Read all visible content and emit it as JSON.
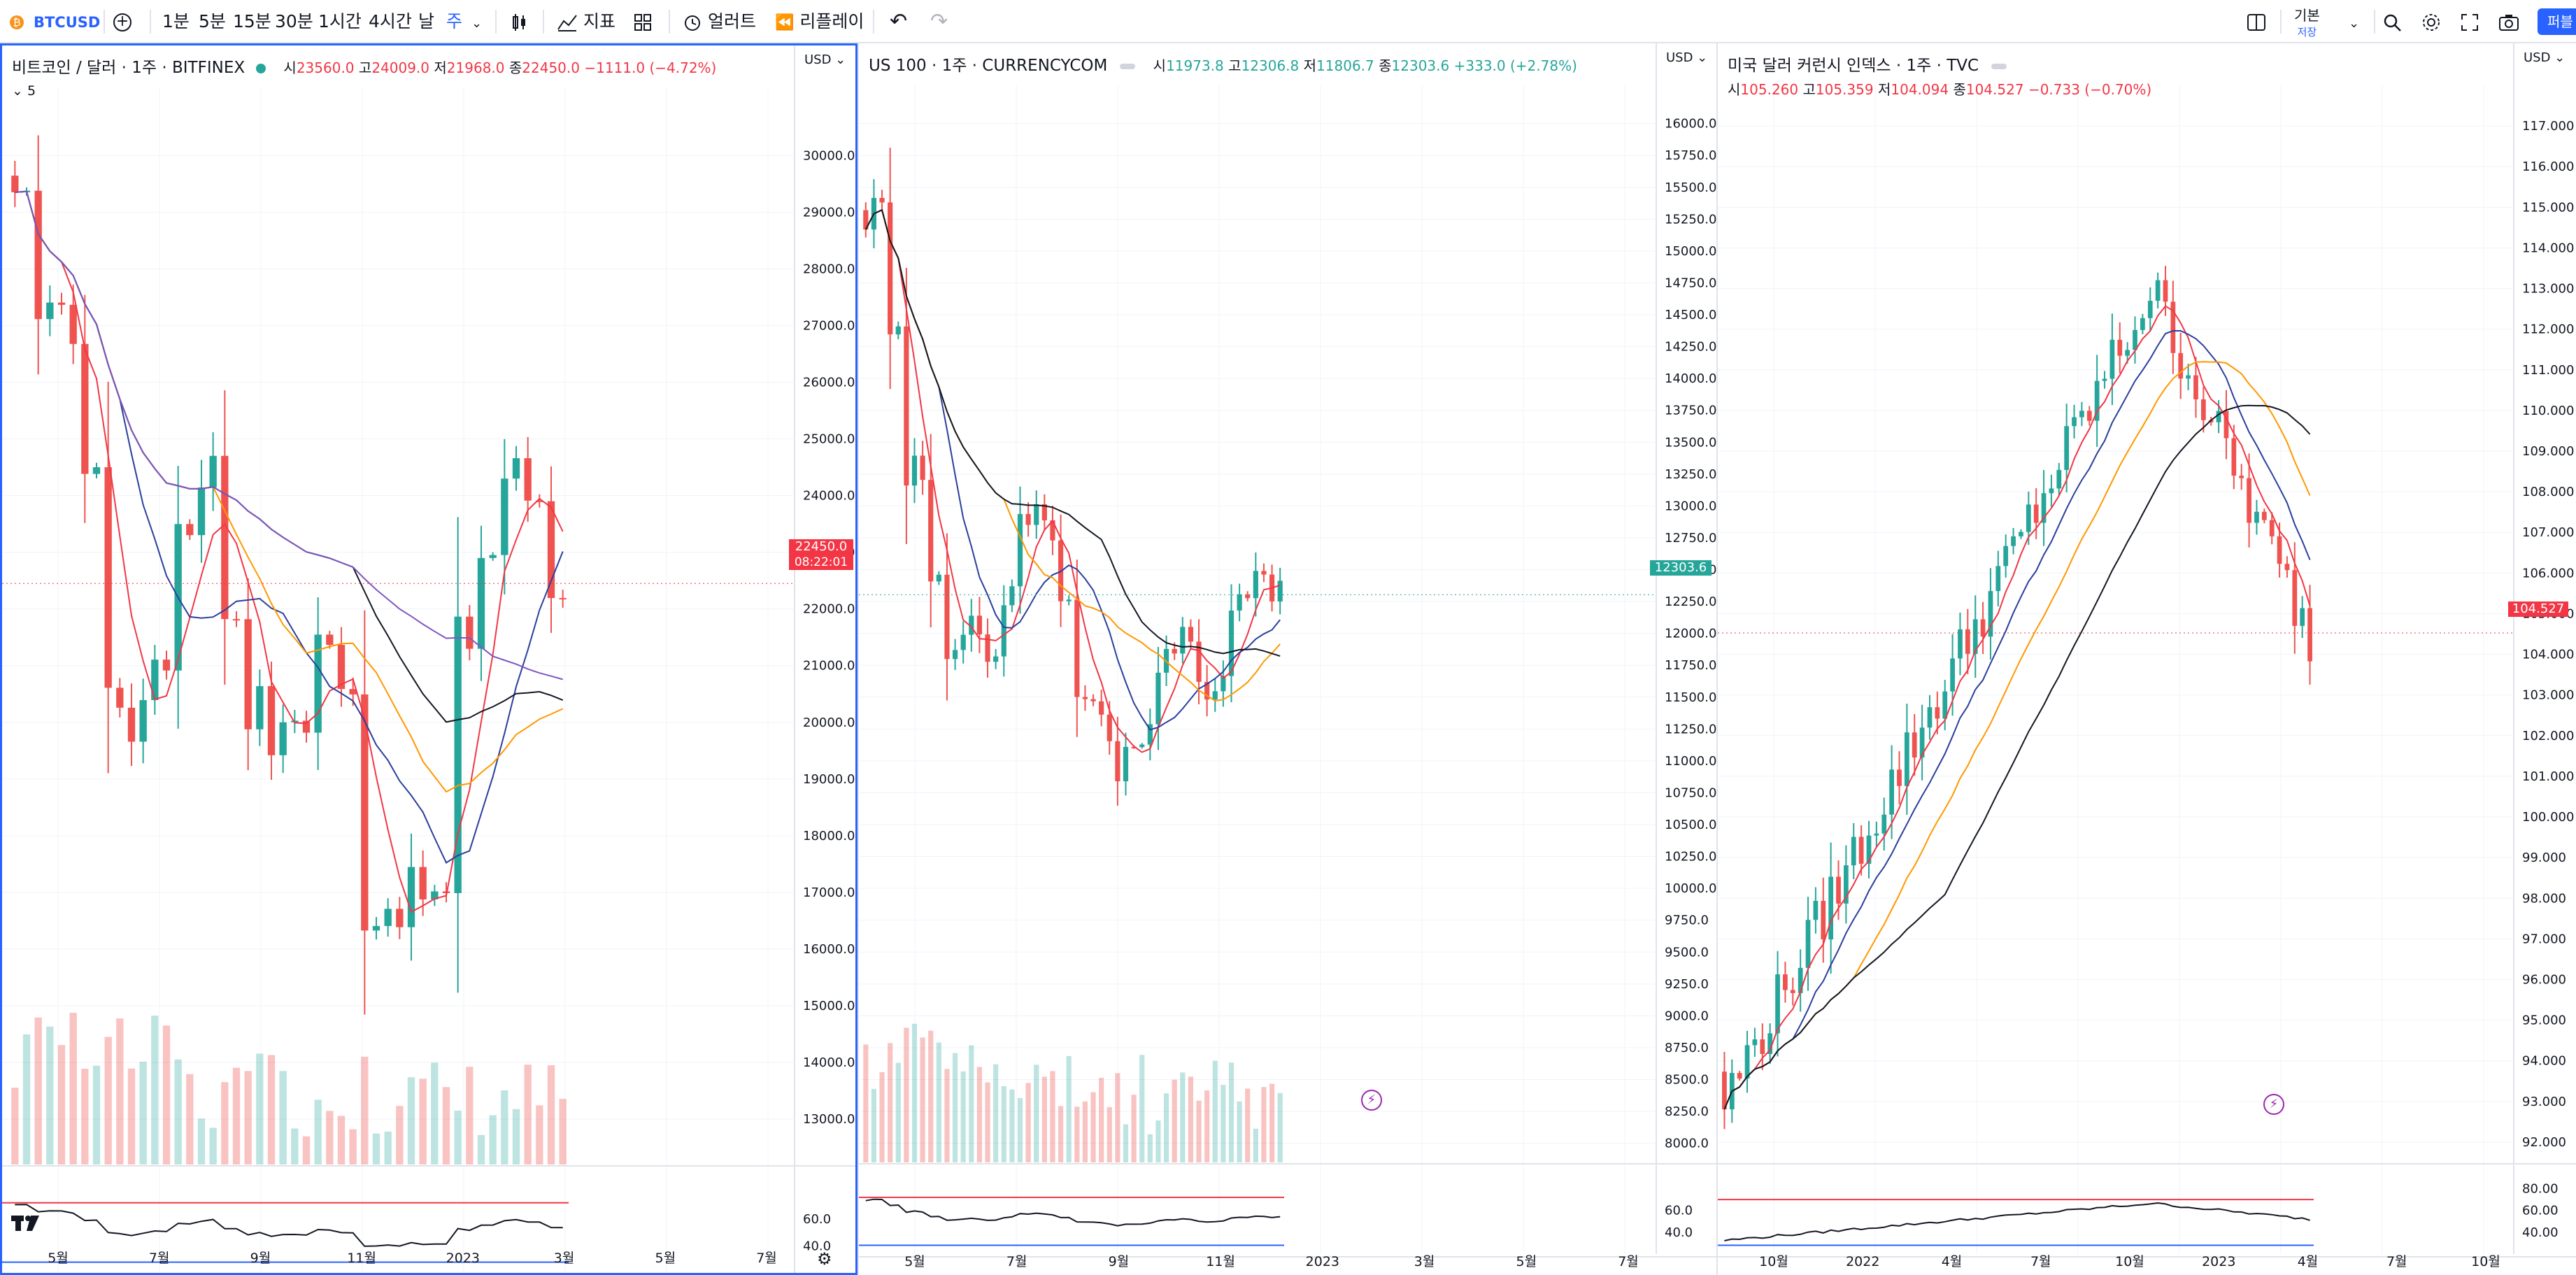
{
  "toolbar": {
    "symbol": "BTCUSD",
    "intervals": [
      "1분",
      "5분",
      "15분",
      "30분",
      "1시간",
      "4시간",
      "날",
      "주"
    ],
    "active_interval": "주",
    "indicators_label": "지표",
    "alerts_label": "얼러트",
    "replay_label": "리플레이",
    "layout_name": "기본",
    "layout_sub": "저장",
    "publish_label": "퍼블"
  },
  "colors": {
    "up": "#26a69a",
    "down": "#ef5350",
    "ma_red": "#f23645",
    "ma_blue": "#2a3f9d",
    "ma_orange": "#ff9800",
    "ma_black": "#131722",
    "ma_purple": "#7e57c2",
    "accent": "#2962ff"
  },
  "panes": [
    {
      "id": "btc",
      "title": "비트코인 / 달러 · 1주 · BITFINEX",
      "ohlc": {
        "o_label": "시",
        "o": "23560.0",
        "h_label": "고",
        "h": "24009.0",
        "l_label": "저",
        "l": "21968.0",
        "c_label": "종",
        "c": "22450.0",
        "chg": "−1111.0 (−4.72%)"
      },
      "sub_legend": "5",
      "currency": "USD",
      "price_ticks": [
        "30000.0",
        "29000.0",
        "28000.0",
        "27000.0",
        "26000.0",
        "25000.0",
        "24000.0",
        "23000.0",
        "22000.0",
        "21000.0",
        "20000.0",
        "19000.0",
        "18000.0",
        "17000.0",
        "16000.0",
        "15000.0",
        "14000.0",
        "13000.0"
      ],
      "price_range": [
        12200,
        31200
      ],
      "last_price": "22450.0",
      "countdown": "08:22:01",
      "osc_ticks": [
        "60.0",
        "40.0"
      ],
      "time_labels": [
        "5월",
        "7월",
        "9월",
        "11월",
        "2023",
        "3월",
        "5월",
        "7월"
      ],
      "trend": "bear"
    },
    {
      "id": "ndx",
      "title": "US 100 · 1주 · CURRENCYCOM",
      "ohlc": {
        "o_label": "시",
        "o": "11973.8",
        "h_label": "고",
        "h": "12306.8",
        "l_label": "저",
        "l": "11806.7",
        "c_label": "종",
        "c": "12303.6",
        "chg": "+333.0 (+2.78%)"
      },
      "currency": "USD",
      "price_ticks": [
        "16000.0",
        "15750.0",
        "15500.0",
        "15250.0",
        "15000.0",
        "14750.0",
        "14500.0",
        "14250.0",
        "14000.0",
        "13750.0",
        "13500.0",
        "13250.0",
        "13000.0",
        "12750.0",
        "12500.0",
        "12250.0",
        "12000.0",
        "11750.0",
        "11500.0",
        "11250.0",
        "11000.0",
        "10750.0",
        "10500.0",
        "10250.0",
        "10000.0",
        "9750.0",
        "9500.0",
        "9250.0",
        "9000.0",
        "8750.0",
        "8500.0",
        "8250.0",
        "8000.0"
      ],
      "price_range": [
        7850,
        16300
      ],
      "last_price": "12303.6",
      "osc_ticks": [
        "60.0",
        "40.0"
      ],
      "time_labels": [
        "5월",
        "7월",
        "9월",
        "11월",
        "2023",
        "3월",
        "5월",
        "7월"
      ],
      "trend": "range"
    },
    {
      "id": "dxy",
      "title": "미국 달러 커런시 인덱스 · 1주 · TVC",
      "ohlc": {
        "o_label": "시",
        "o": "105.260",
        "h_label": "고",
        "h": "105.359",
        "l_label": "저",
        "l": "104.094",
        "c_label": "종",
        "c": "104.527",
        "chg": "−0.733 (−0.70%)"
      },
      "currency": "USD",
      "price_ticks": [
        "117.000",
        "116.000",
        "115.000",
        "114.000",
        "113.000",
        "112.000",
        "111.000",
        "110.000",
        "109.000",
        "108.000",
        "107.000",
        "106.000",
        "105.000",
        "104.000",
        "103.000",
        "102.000",
        "101.000",
        "100.000",
        "99.000",
        "98.000",
        "97.000",
        "96.000",
        "95.000",
        "94.000",
        "93.000",
        "92.000"
      ],
      "price_range": [
        91.5,
        118.0
      ],
      "last_price": "104.527",
      "osc_ticks": [
        "80.00",
        "60.00",
        "40.00"
      ],
      "time_labels": [
        "10월",
        "2022",
        "4월",
        "7월",
        "10월",
        "2023",
        "4월",
        "7월",
        "10월"
      ],
      "trend": "bull"
    }
  ]
}
